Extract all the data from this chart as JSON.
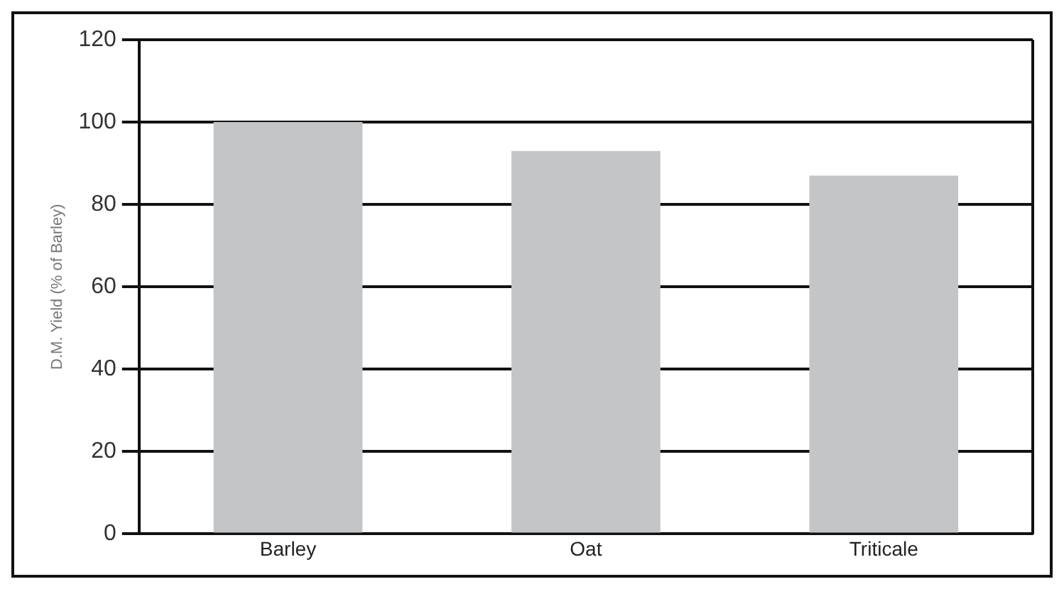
{
  "chart_data": {
    "type": "bar",
    "ylabel": "D.M. Yield (% of Barley)",
    "categories": [
      "Barley",
      "Oat",
      "Triticale"
    ],
    "values": [
      100,
      93,
      87
    ],
    "color": "#c4c5c7",
    "ylim": [
      0,
      120
    ],
    "yticks": [
      0,
      20,
      40,
      60,
      80,
      100,
      120
    ],
    "grid": "y",
    "legend": false
  }
}
